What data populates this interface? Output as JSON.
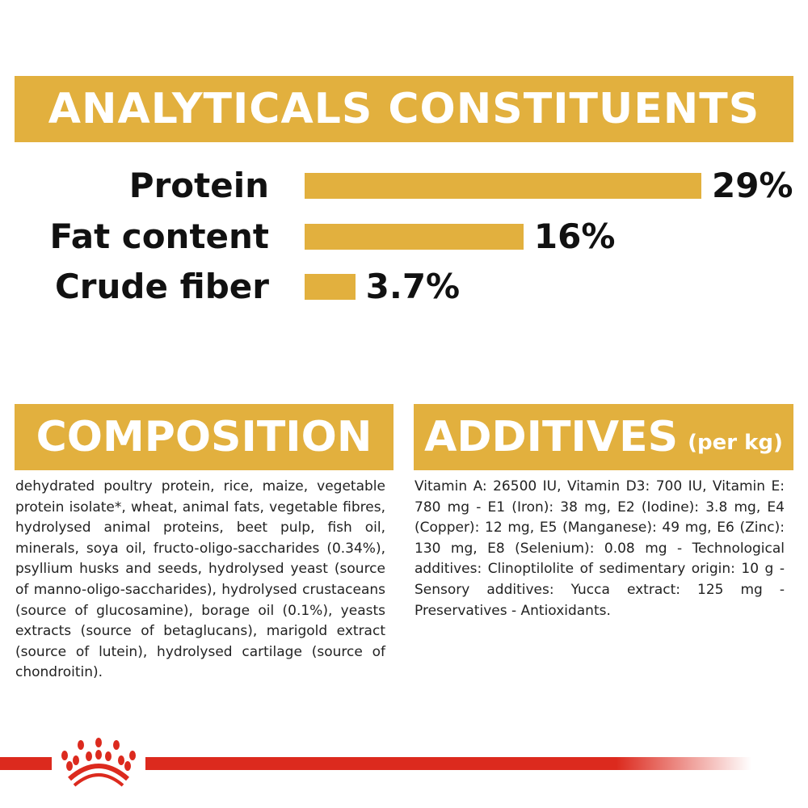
{
  "header": {
    "title": "ANALYTICALS CONSTITUENTS"
  },
  "chart_data": {
    "type": "bar",
    "orientation": "horizontal",
    "categories": [
      "Protein",
      "Fat content",
      "Crude fiber"
    ],
    "values": [
      29,
      16,
      3.7
    ],
    "data_labels": [
      "29%",
      "16%",
      "3.7%"
    ],
    "unit": "%",
    "bar_color": "#e2b03e"
  },
  "composition": {
    "title": "COMPOSITION",
    "text": "dehydrated poultry protein, rice, maize, vegetable protein isolate*, wheat, animal fats, vegetable fibres, hydrolysed animal proteins, beet pulp, fish oil, minerals, soya oil, fructo-oligo-saccharides (0.34%), psyllium husks and seeds, hydrolysed yeast (source of manno-oligo-saccharides), hydrolysed crustaceans (source of glucosamine), borage oil (0.1%), yeasts extracts (source of betaglucans), marigold extract (source of lutein), hydrolysed cartilage (source of chondroitin)."
  },
  "additives": {
    "title": "ADDITIVES",
    "unit": "(per kg)",
    "text": "Vitamin A: 26500 IU, Vitamin D3: 700 IU, Vitamin E: 780 mg - E1 (Iron): 38 mg, E2 (Iodine): 3.8 mg, E4 (Copper): 12 mg, E5 (Manganese): 49 mg, E6 (Zinc): 130 mg, E8 (Selenium): 0.08 mg - Technological additives: Clinoptilolite of sedimentary origin: 10 g - Sensory additives: Yucca extract: 125 mg - Preservatives - Antioxidants."
  },
  "colors": {
    "accent": "#e2b03e",
    "brand_red": "#dc2a1e"
  },
  "footer": {
    "logo": "crown-logo-icon"
  }
}
